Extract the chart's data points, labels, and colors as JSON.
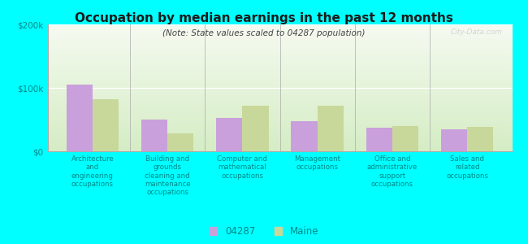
{
  "title": "Occupation by median earnings in the past 12 months",
  "subtitle": "(Note: State values scaled to 04287 population)",
  "categories": [
    "Architecture\nand\nengineering\noccupations",
    "Building and\ngrounds\ncleaning and\nmaintenance\noccupations",
    "Computer and\nmathematical\noccupations",
    "Management\noccupations",
    "Office and\nadministrative\nsupport\noccupations",
    "Sales and\nrelated\noccupations"
  ],
  "values_04287": [
    105000,
    50000,
    52000,
    47000,
    37000,
    35000
  ],
  "values_maine": [
    82000,
    28000,
    72000,
    72000,
    40000,
    38000
  ],
  "color_04287": "#c9a0dc",
  "color_maine": "#c8d89a",
  "ylim": [
    0,
    200000
  ],
  "yticks": [
    0,
    100000,
    200000
  ],
  "ytick_labels": [
    "$0",
    "$100k",
    "$200k"
  ],
  "legend_labels": [
    "04287",
    "Maine"
  ],
  "bg_color": "#00ffff",
  "watermark": "City-Data.com",
  "bar_width": 0.35
}
